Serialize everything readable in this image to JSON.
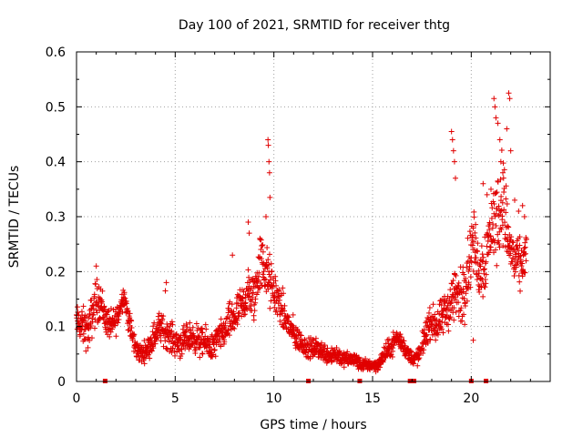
{
  "chart_data": {
    "type": "scatter",
    "title": "Day 100 of 2021, SRMTID for receiver thtg",
    "xlabel": "GPS time / hours",
    "ylabel": "SRMTID / TECUs",
    "xlim": [
      0,
      24
    ],
    "ylim": [
      0,
      0.6
    ],
    "xticks": [
      0,
      5,
      10,
      15,
      20
    ],
    "yticks": [
      0,
      0.1,
      0.2,
      0.3,
      0.4,
      0.5,
      0.6
    ],
    "xtick_labels": [
      "0",
      "5",
      "10",
      "15",
      "20"
    ],
    "ytick_labels": [
      "0",
      "0.1",
      "0.2",
      "0.3",
      "0.4",
      "0.5",
      "0.6"
    ],
    "grid": true,
    "marker": "+",
    "color": "#e00000",
    "series": [
      {
        "name": "SRMTID",
        "profile_x": [
          0.0,
          0.3,
          0.6,
          0.9,
          1.2,
          1.5,
          1.8,
          2.1,
          2.4,
          2.7,
          3.0,
          3.3,
          3.6,
          3.9,
          4.2,
          4.5,
          4.8,
          5.1,
          5.4,
          5.7,
          6.0,
          6.3,
          6.6,
          6.9,
          7.2,
          7.5,
          7.8,
          8.1,
          8.4,
          8.7,
          9.0,
          9.3,
          9.6,
          9.9,
          10.2,
          10.5,
          10.8,
          11.1,
          11.4,
          11.7,
          12.0,
          12.3,
          12.6,
          12.9,
          13.2,
          13.5,
          13.8,
          14.1,
          14.4,
          14.7,
          15.0,
          15.3,
          15.6,
          15.9,
          16.2,
          16.5,
          16.8,
          17.1,
          17.4,
          17.7,
          18.0,
          18.3,
          18.6,
          18.9,
          19.2,
          19.5,
          19.8,
          20.1,
          20.4,
          20.7,
          21.0,
          21.3,
          21.6,
          21.9,
          22.2,
          22.5,
          22.8
        ],
        "profile_y": [
          0.11,
          0.1,
          0.09,
          0.14,
          0.15,
          0.11,
          0.1,
          0.12,
          0.16,
          0.1,
          0.06,
          0.05,
          0.06,
          0.08,
          0.1,
          0.09,
          0.08,
          0.07,
          0.07,
          0.08,
          0.08,
          0.07,
          0.07,
          0.06,
          0.08,
          0.09,
          0.11,
          0.12,
          0.14,
          0.16,
          0.15,
          0.22,
          0.2,
          0.17,
          0.15,
          0.12,
          0.1,
          0.08,
          0.07,
          0.06,
          0.06,
          0.06,
          0.05,
          0.05,
          0.05,
          0.04,
          0.04,
          0.04,
          0.03,
          0.03,
          0.03,
          0.03,
          0.05,
          0.06,
          0.08,
          0.07,
          0.05,
          0.04,
          0.05,
          0.09,
          0.11,
          0.1,
          0.12,
          0.14,
          0.16,
          0.15,
          0.2,
          0.26,
          0.2,
          0.22,
          0.28,
          0.3,
          0.34,
          0.25,
          0.22,
          0.21,
          0.23
        ],
        "profile_spread": [
          0.03,
          0.04,
          0.04,
          0.05,
          0.04,
          0.03,
          0.03,
          0.03,
          0.02,
          0.03,
          0.02,
          0.02,
          0.02,
          0.03,
          0.03,
          0.03,
          0.03,
          0.03,
          0.03,
          0.03,
          0.03,
          0.03,
          0.03,
          0.03,
          0.03,
          0.03,
          0.04,
          0.04,
          0.04,
          0.05,
          0.05,
          0.06,
          0.06,
          0.05,
          0.04,
          0.04,
          0.03,
          0.03,
          0.02,
          0.02,
          0.02,
          0.02,
          0.02,
          0.02,
          0.02,
          0.015,
          0.015,
          0.015,
          0.012,
          0.012,
          0.012,
          0.012,
          0.02,
          0.02,
          0.02,
          0.02,
          0.015,
          0.015,
          0.02,
          0.03,
          0.03,
          0.04,
          0.04,
          0.05,
          0.06,
          0.06,
          0.07,
          0.06,
          0.06,
          0.07,
          0.07,
          0.09,
          0.1,
          0.06,
          0.05,
          0.05,
          0.05
        ],
        "outliers": [
          {
            "x": 1.0,
            "y": 0.21
          },
          {
            "x": 4.5,
            "y": 0.165
          },
          {
            "x": 4.55,
            "y": 0.18
          },
          {
            "x": 7.9,
            "y": 0.23
          },
          {
            "x": 9.7,
            "y": 0.44
          },
          {
            "x": 9.72,
            "y": 0.43
          },
          {
            "x": 9.75,
            "y": 0.4
          },
          {
            "x": 9.78,
            "y": 0.38
          },
          {
            "x": 9.8,
            "y": 0.335
          },
          {
            "x": 9.6,
            "y": 0.3
          },
          {
            "x": 8.7,
            "y": 0.29
          },
          {
            "x": 8.75,
            "y": 0.27
          },
          {
            "x": 19.0,
            "y": 0.455
          },
          {
            "x": 19.05,
            "y": 0.44
          },
          {
            "x": 19.1,
            "y": 0.42
          },
          {
            "x": 19.15,
            "y": 0.4
          },
          {
            "x": 19.2,
            "y": 0.37
          },
          {
            "x": 20.1,
            "y": 0.075
          },
          {
            "x": 21.15,
            "y": 0.515
          },
          {
            "x": 21.2,
            "y": 0.5
          },
          {
            "x": 21.25,
            "y": 0.48
          },
          {
            "x": 21.35,
            "y": 0.47
          },
          {
            "x": 21.45,
            "y": 0.44
          },
          {
            "x": 21.9,
            "y": 0.525
          },
          {
            "x": 21.95,
            "y": 0.515
          },
          {
            "x": 21.8,
            "y": 0.46
          },
          {
            "x": 22.0,
            "y": 0.42
          },
          {
            "x": 21.5,
            "y": 0.4
          },
          {
            "x": 21.6,
            "y": 0.38
          },
          {
            "x": 22.2,
            "y": 0.33
          },
          {
            "x": 22.4,
            "y": 0.31
          },
          {
            "x": 22.6,
            "y": 0.32
          },
          {
            "x": 22.7,
            "y": 0.3
          },
          {
            "x": 20.8,
            "y": 0.34
          },
          {
            "x": 21.0,
            "y": 0.35
          },
          {
            "x": 20.6,
            "y": 0.36
          }
        ],
        "gap_markers_x": [
          1.45,
          11.75,
          14.35,
          16.9,
          17.1,
          20.0,
          20.75
        ]
      }
    ]
  }
}
